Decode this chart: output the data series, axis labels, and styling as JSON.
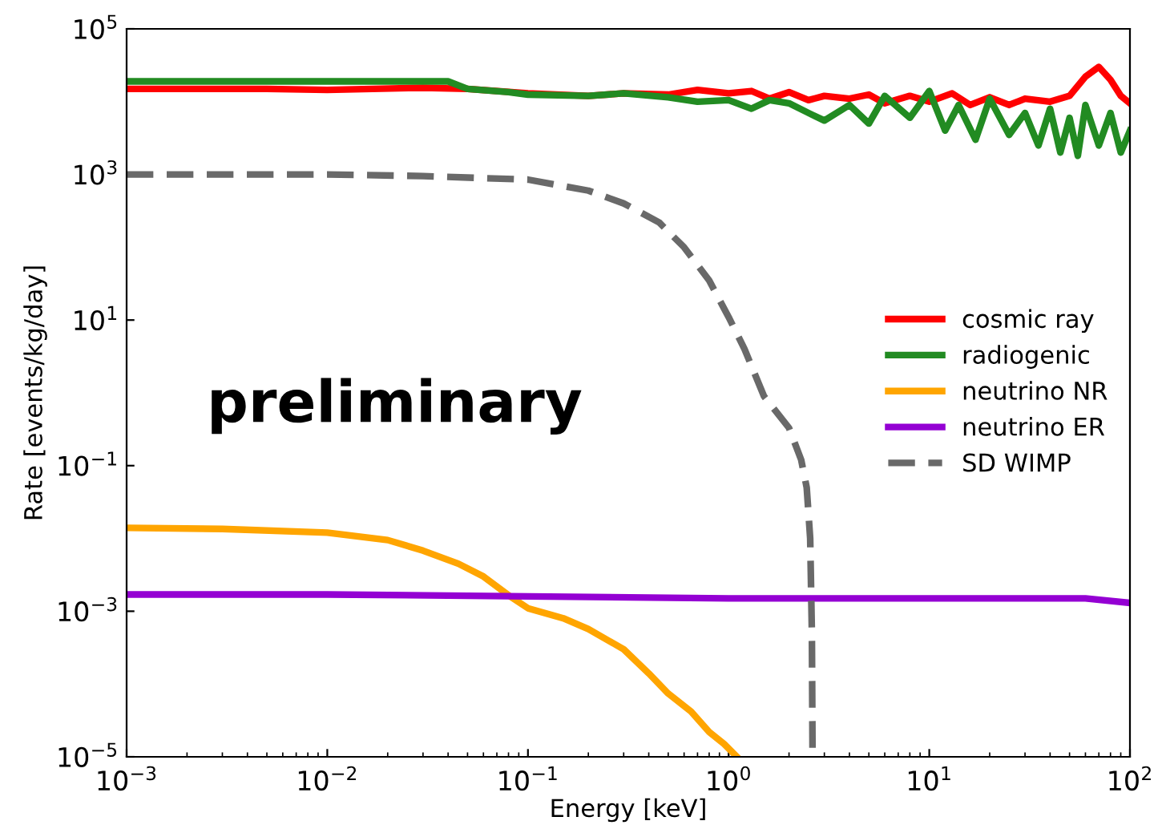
{
  "chart_data": {
    "type": "line",
    "xlabel": "Energy [keV]",
    "ylabel": "Rate [events/kg/day]",
    "log": "xy",
    "legend": "center right",
    "grid": false,
    "xlim": [
      0.001,
      100
    ],
    "ylim": [
      1e-05,
      100000
    ],
    "xticks": [
      {
        "value": 0.001,
        "label": "10$^{−3}$"
      },
      {
        "value": 0.01,
        "label": "10$^{−2}$"
      },
      {
        "value": 0.1,
        "label": "10$^{−1}$"
      },
      {
        "value": 1,
        "label": "10$^{0}$"
      },
      {
        "value": 10,
        "label": "10$^{1}$"
      },
      {
        "value": 100,
        "label": "10$^{2}$"
      }
    ],
    "yticks": [
      {
        "value": 1e-05,
        "label": "10$^{−5}$"
      },
      {
        "value": 0.001,
        "label": "10$^{−3}$"
      },
      {
        "value": 0.1,
        "label": "10$^{−1}$"
      },
      {
        "value": 10,
        "label": "10$^{1}$"
      },
      {
        "value": 1000,
        "label": "10$^{3}$"
      },
      {
        "value": 100000,
        "label": "10$^{5}$"
      }
    ],
    "annotations": [
      "preliminary"
    ],
    "series": [
      {
        "name": "cosmic ray",
        "color": "#ff0000",
        "line_style": "solid",
        "x": [
          0.001,
          0.005,
          0.01,
          0.03,
          0.05,
          0.1,
          0.2,
          0.3,
          0.5,
          0.7,
          1.0,
          1.3,
          1.6,
          2.0,
          2.5,
          3.0,
          4.0,
          5.0,
          6.0,
          8.0,
          10,
          13,
          16,
          20,
          25,
          30,
          40,
          50,
          60,
          70,
          80,
          90,
          100
        ],
        "values": [
          15000,
          15000,
          14500,
          15500,
          15000,
          13000,
          12000,
          13000,
          12500,
          14500,
          13000,
          14000,
          11000,
          13500,
          10500,
          12000,
          11000,
          12500,
          9500,
          12000,
          10000,
          13000,
          9000,
          11500,
          9000,
          11000,
          10000,
          12000,
          22000,
          30000,
          20000,
          12000,
          9500
        ]
      },
      {
        "name": "radiogenic",
        "color": "#228b22",
        "line_style": "solid",
        "x": [
          0.001,
          0.01,
          0.04,
          0.05,
          0.08,
          0.1,
          0.2,
          0.3,
          0.5,
          0.7,
          1.0,
          1.3,
          1.6,
          2.0,
          2.5,
          3.0,
          4.0,
          5.0,
          6.0,
          8.0,
          10,
          12,
          14,
          17,
          20,
          25,
          30,
          35,
          40,
          45,
          50,
          55,
          60,
          70,
          80,
          90,
          100
        ],
        "values": [
          19000,
          19000,
          19000,
          15000,
          13500,
          12500,
          12000,
          13000,
          11500,
          10000,
          10500,
          8000,
          10500,
          9500,
          7000,
          5500,
          9000,
          5000,
          12000,
          6000,
          14000,
          4000,
          9000,
          3000,
          11000,
          3500,
          7000,
          2500,
          8000,
          2000,
          6000,
          1800,
          9000,
          2500,
          7000,
          2000,
          4000
        ]
      },
      {
        "name": "neutrino NR",
        "color": "#ffa500",
        "line_style": "solid",
        "x": [
          0.001,
          0.003,
          0.01,
          0.02,
          0.03,
          0.045,
          0.06,
          0.08,
          0.1,
          0.15,
          0.2,
          0.3,
          0.4,
          0.5,
          0.65,
          0.8,
          0.95,
          1.1
        ],
        "values": [
          0.014,
          0.0135,
          0.012,
          0.0095,
          0.0068,
          0.0045,
          0.003,
          0.00166,
          0.0011,
          0.0008,
          0.00057,
          0.0003,
          0.00014,
          7.4e-05,
          4.2e-05,
          2.2e-05,
          1.5e-05,
          1e-05
        ]
      },
      {
        "name": "neutrino ER",
        "color": "#9400d3",
        "line_style": "solid",
        "x": [
          0.001,
          0.01,
          0.1,
          1,
          3,
          10,
          30,
          60,
          100
        ],
        "values": [
          0.0017,
          0.0017,
          0.0016,
          0.0015,
          0.0015,
          0.0015,
          0.0015,
          0.0015,
          0.0013
        ]
      },
      {
        "name": "SD WIMP",
        "color": "#696969",
        "line_style": "dashed",
        "x": [
          0.001,
          0.01,
          0.03,
          0.1,
          0.2,
          0.3,
          0.45,
          0.6,
          0.8,
          1.0,
          1.2,
          1.5,
          2.0,
          2.3,
          2.45,
          2.55,
          2.6,
          2.62
        ],
        "values": [
          1000,
          1000,
          950,
          850,
          600,
          400,
          220,
          100,
          35,
          11,
          4,
          0.9,
          0.33,
          0.12,
          0.05,
          0.01,
          0.0005,
          1e-05
        ]
      }
    ]
  }
}
